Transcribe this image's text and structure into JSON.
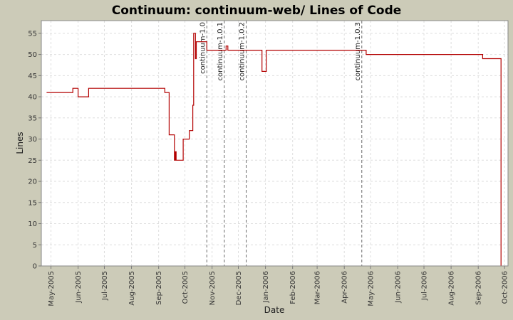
{
  "chart_data": {
    "type": "line",
    "title": "Continuum: continuum-web/ Lines of Code",
    "xlabel": "Date",
    "ylabel": "Lines",
    "ylim": [
      0,
      58
    ],
    "yticks": [
      0,
      5,
      10,
      15,
      20,
      25,
      30,
      35,
      40,
      45,
      50,
      55
    ],
    "xlim": [
      "2005-04-20",
      "2006-10-05"
    ],
    "xticks": [
      {
        "date": "2005-05-01",
        "label": "May-2005"
      },
      {
        "date": "2005-06-01",
        "label": "Jun-2005"
      },
      {
        "date": "2005-07-01",
        "label": "Jul-2005"
      },
      {
        "date": "2005-08-01",
        "label": "Aug-2005"
      },
      {
        "date": "2005-09-01",
        "label": "Sep-2005"
      },
      {
        "date": "2005-10-01",
        "label": "Oct-2005"
      },
      {
        "date": "2005-11-01",
        "label": "Nov-2005"
      },
      {
        "date": "2005-12-01",
        "label": "Dec-2005"
      },
      {
        "date": "2006-01-01",
        "label": "Jan-2006"
      },
      {
        "date": "2006-02-01",
        "label": "Feb-2006"
      },
      {
        "date": "2006-03-01",
        "label": "Mar-2006"
      },
      {
        "date": "2006-04-01",
        "label": "Apr-2006"
      },
      {
        "date": "2006-05-01",
        "label": "May-2006"
      },
      {
        "date": "2006-06-01",
        "label": "Jun-2006"
      },
      {
        "date": "2006-07-01",
        "label": "Jul-2006"
      },
      {
        "date": "2006-08-01",
        "label": "Aug-2006"
      },
      {
        "date": "2006-09-01",
        "label": "Sep-2006"
      },
      {
        "date": "2006-10-01",
        "label": "Oct-2006"
      }
    ],
    "grid": true,
    "series": [
      {
        "color": "#b30000",
        "step": true,
        "points": [
          [
            "2005-04-26",
            41
          ],
          [
            "2005-05-26",
            42
          ],
          [
            "2005-06-01",
            40
          ],
          [
            "2005-06-13",
            42
          ],
          [
            "2005-09-08",
            41
          ],
          [
            "2005-09-13",
            31
          ],
          [
            "2005-09-19",
            25
          ],
          [
            "2005-09-20",
            27
          ],
          [
            "2005-09-21",
            25
          ],
          [
            "2005-09-29",
            30
          ],
          [
            "2005-10-06",
            32
          ],
          [
            "2005-10-10",
            38
          ],
          [
            "2005-10-11",
            55
          ],
          [
            "2005-10-13",
            49
          ],
          [
            "2005-10-14",
            53
          ],
          [
            "2005-10-26",
            51
          ],
          [
            "2005-11-17",
            52
          ],
          [
            "2005-11-19",
            51
          ],
          [
            "2005-12-28",
            46
          ],
          [
            "2006-01-02",
            51
          ],
          [
            "2006-04-26",
            50
          ],
          [
            "2006-09-06",
            49
          ],
          [
            "2006-09-26",
            49
          ],
          [
            "2006-09-27",
            0
          ]
        ]
      }
    ],
    "markers": [
      {
        "date": "2005-10-26",
        "label": "continuum-1.0"
      },
      {
        "date": "2005-11-15",
        "label": "continuum-1.0.1"
      },
      {
        "date": "2005-12-10",
        "label": "continuum-1.0.2"
      },
      {
        "date": "2006-04-21",
        "label": "continuum-1.0.3"
      }
    ]
  }
}
